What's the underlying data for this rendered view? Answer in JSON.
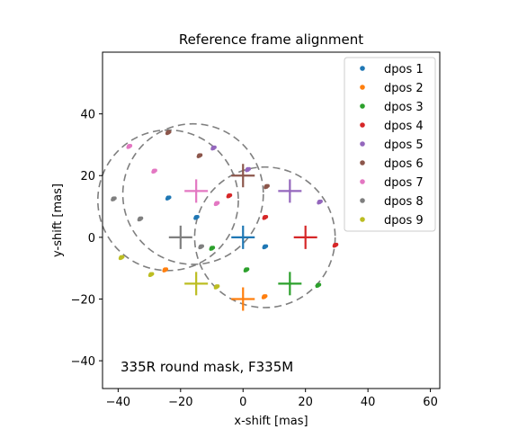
{
  "chart_data": {
    "type": "scatter",
    "title": "Reference frame alignment",
    "xlabel": "x-shift [mas]",
    "ylabel": "y-shift [mas]",
    "xlim": [
      -45,
      63
    ],
    "ylim": [
      -49,
      60
    ],
    "xticks": [
      -40,
      -20,
      0,
      20,
      40,
      60
    ],
    "yticks": [
      -40,
      -20,
      0,
      20,
      40
    ],
    "grid": false,
    "legend_position": "top-right",
    "annotation": "335R round mask, F335M",
    "series": [
      {
        "name": "dpos 1",
        "color": "#1f77b4",
        "cross": [
          0,
          0
        ],
        "points": [
          [
            -24,
            12.8
          ],
          [
            -15,
            6.5
          ],
          [
            7,
            -3
          ]
        ]
      },
      {
        "name": "dpos 2",
        "color": "#ff7f0e",
        "cross": [
          0,
          -20
        ],
        "points": [
          [
            -25,
            -10.5
          ],
          [
            6.8,
            -19.2
          ]
        ]
      },
      {
        "name": "dpos 3",
        "color": "#2ca02c",
        "cross": [
          15,
          -15
        ],
        "points": [
          [
            -10,
            -3.5
          ],
          [
            1,
            -10.5
          ],
          [
            24,
            -15.5
          ]
        ]
      },
      {
        "name": "dpos 4",
        "color": "#d62728",
        "cross": [
          20,
          0
        ],
        "points": [
          [
            -4.5,
            13.5
          ],
          [
            7,
            6.5
          ],
          [
            29.5,
            -2.5
          ]
        ]
      },
      {
        "name": "dpos 5",
        "color": "#9467bd",
        "cross": [
          15,
          15
        ],
        "points": [
          [
            -9.5,
            29
          ],
          [
            1.5,
            22
          ],
          [
            24.5,
            11.5
          ]
        ]
      },
      {
        "name": "dpos 6",
        "color": "#8c564b",
        "cross": [
          0,
          20
        ],
        "points": [
          [
            -24,
            34
          ],
          [
            -14,
            26.5
          ],
          [
            7.5,
            16.5
          ]
        ]
      },
      {
        "name": "dpos 7",
        "color": "#e377c2",
        "cross": [
          -15,
          15
        ],
        "points": [
          [
            -36.5,
            29.5
          ],
          [
            -28.5,
            21.5
          ],
          [
            -8.5,
            11
          ]
        ]
      },
      {
        "name": "dpos 8",
        "color": "#7f7f7f",
        "cross": [
          -20,
          0
        ],
        "points": [
          [
            -41.5,
            12.5
          ],
          [
            -33,
            6
          ],
          [
            -13.5,
            -3
          ]
        ]
      },
      {
        "name": "dpos 9",
        "color": "#bcbd22",
        "cross": [
          -15,
          -15
        ],
        "points": [
          [
            -39,
            -6.5
          ],
          [
            -29.5,
            -12
          ],
          [
            -8.5,
            -16
          ]
        ]
      }
    ],
    "circles": [
      {
        "center": [
          -24,
          12
        ],
        "radius": 22.5
      },
      {
        "center": [
          -16,
          14
        ],
        "radius": 22.5
      },
      {
        "center": [
          7,
          0
        ],
        "radius": 22.5
      }
    ],
    "circle_color": "#7f7f7f"
  }
}
